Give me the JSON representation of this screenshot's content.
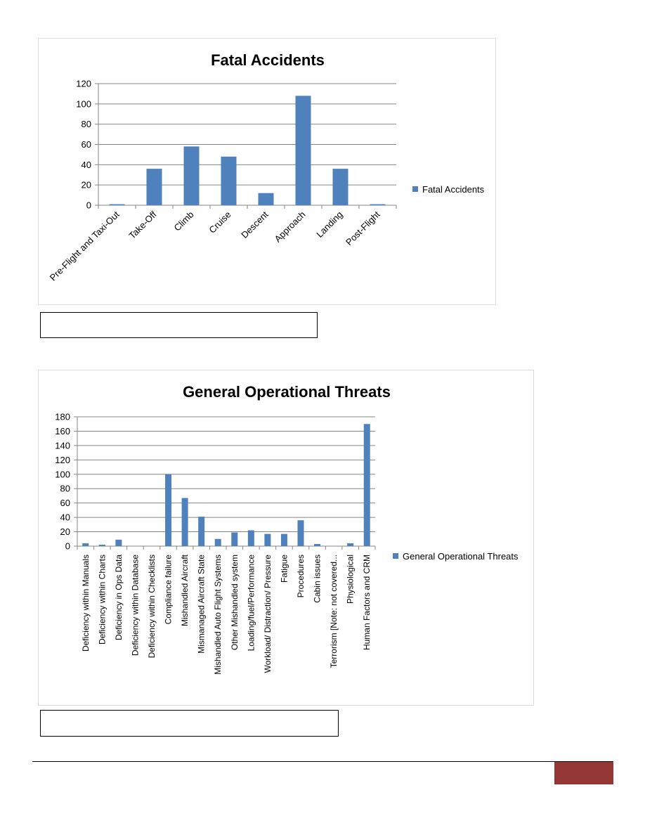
{
  "charts": [
    {
      "chart_data": {
        "type": "bar",
        "title": "Fatal Accidents",
        "categories": [
          "Pre-Flight and Taxi-Out",
          "Take-Off",
          "Climb",
          "Cruise",
          "Descent",
          "Approach",
          "Landing",
          "Post-Flight"
        ],
        "series": [
          {
            "name": "Fatal Accidents",
            "values": [
              1,
              36,
              58,
              48,
              12,
              108,
              36,
              1
            ]
          }
        ],
        "ylim": [
          0,
          120
        ],
        "yticks": [
          0,
          20,
          40,
          60,
          80,
          100,
          120
        ],
        "grid": true,
        "legend": "right",
        "xlabel": "",
        "ylabel": ""
      }
    },
    {
      "chart_data": {
        "type": "bar",
        "title": "General Operational Threats",
        "categories": [
          "Deficiency within Manuals",
          "Deficiency within Charts",
          "Deficiency in Ops Data",
          "Deficiency within Database",
          "Deficiency within Checklists",
          "Compliance failure",
          "Mishandled Aircraft",
          "Mismanaged Aircraft State",
          "Mishandled Auto Flight Systems",
          "Other Mishandled system",
          "Loading/fuel/Performance",
          "Workload/ Distraction/ Pressure",
          "Fatigue",
          "Procedures",
          "Cabin issues",
          "Terrorism [Note: not covered...",
          "Physiological",
          "Human Factors and CRM"
        ],
        "series": [
          {
            "name": "General Operational Threats",
            "values": [
              4,
              2,
              9,
              0,
              0,
              100,
              67,
              41,
              10,
              19,
              22,
              17,
              17,
              36,
              3,
              0,
              4,
              170
            ]
          }
        ],
        "ylim": [
          0,
          180
        ],
        "yticks": [
          0,
          20,
          40,
          60,
          80,
          100,
          120,
          140,
          160,
          180
        ],
        "grid": true,
        "legend": "right",
        "xlabel": "",
        "ylabel": ""
      }
    }
  ],
  "colors": {
    "bar": "#4f81bd",
    "grid": "#868686",
    "axis": "#868686",
    "footer_tab": "#943634"
  }
}
